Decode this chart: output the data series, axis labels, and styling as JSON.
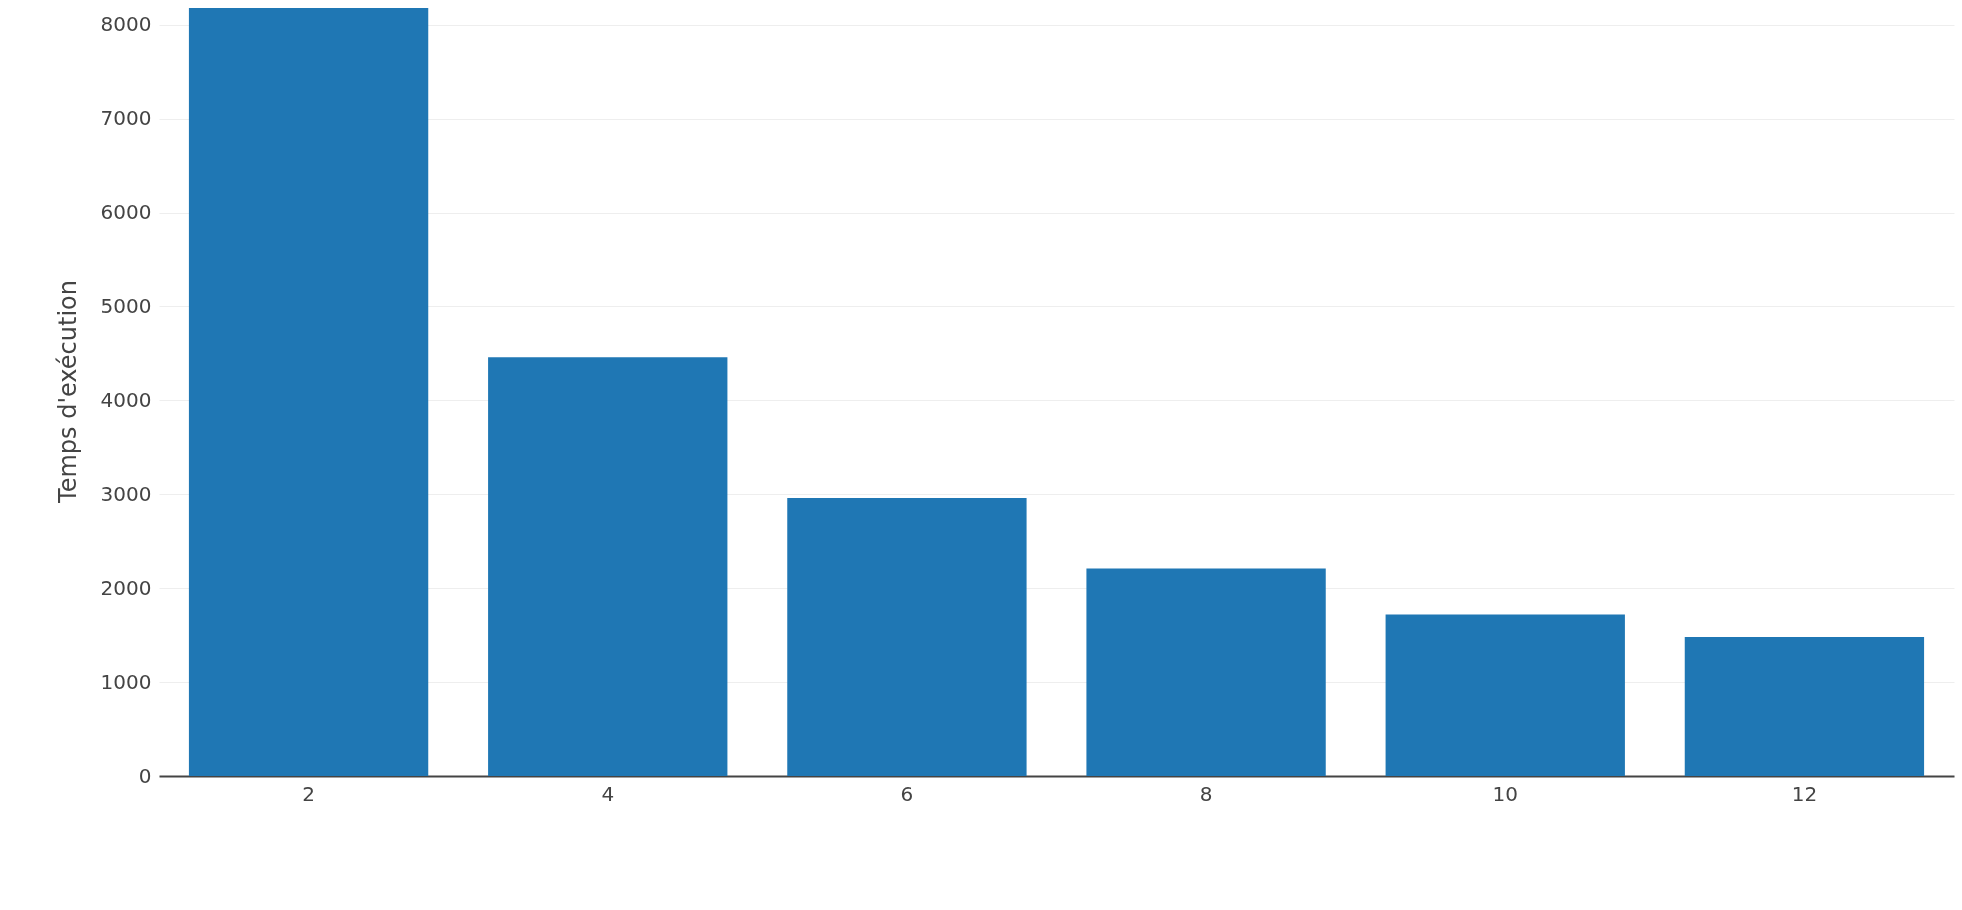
{
  "chart_data": {
    "type": "bar",
    "ylabel": "Temps d'exécution",
    "categories": [
      "2",
      "4",
      "6",
      "8",
      "10",
      "12"
    ],
    "values": [
      8180,
      4460,
      2960,
      2210,
      1720,
      1480
    ],
    "color": "#1f77b4",
    "ylim": [
      0,
      8200
    ],
    "yticks": [
      0,
      1000,
      2000,
      3000,
      4000,
      5000,
      6000,
      7000,
      8000
    ],
    "grid": "y"
  }
}
